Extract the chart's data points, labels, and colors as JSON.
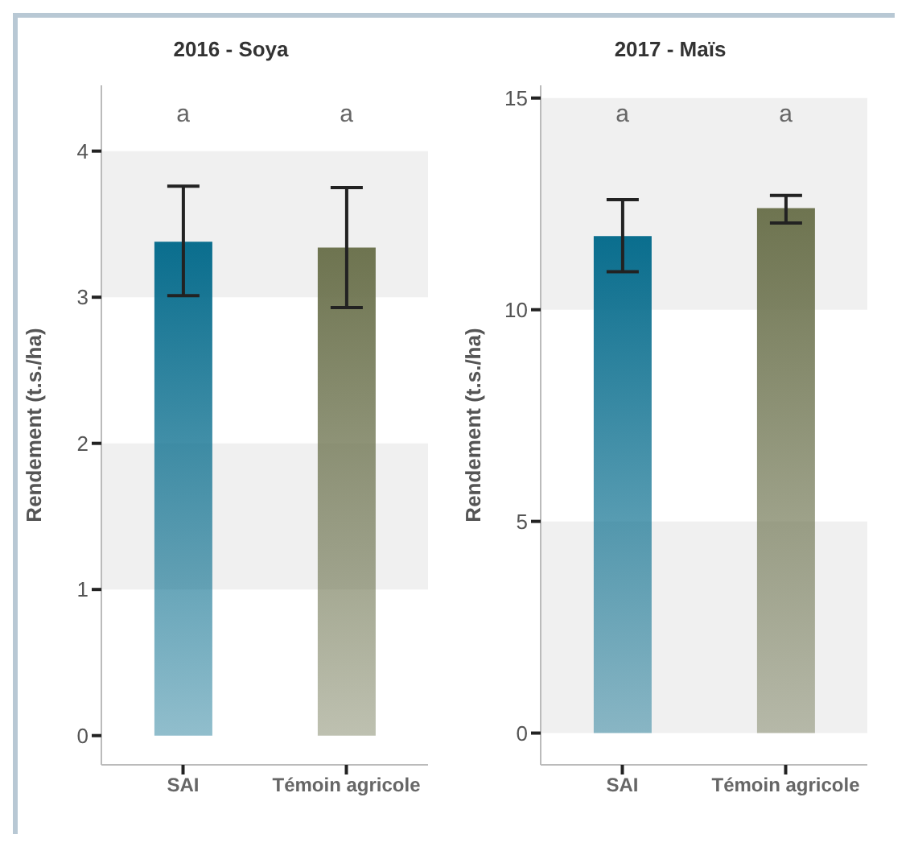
{
  "chart_data": [
    {
      "type": "bar",
      "title": "2016 - Soya",
      "ylabel": "Rendement (t.s./ha)",
      "categories": [
        "SAI",
        "Témoin agricole"
      ],
      "values": [
        3.38,
        3.34
      ],
      "colors": [
        "#0a6e8e",
        "#6e7450"
      ],
      "errors": [
        [
          3.01,
          3.76
        ],
        [
          2.93,
          3.75
        ]
      ],
      "ylim": [
        -0.2,
        4.45
      ],
      "yticks": [
        0,
        1,
        2,
        3,
        4
      ],
      "grid": false,
      "legend": false,
      "bands": [
        {
          "axis": "y",
          "from": 1,
          "to": 2,
          "color": "#f0f0f0"
        },
        {
          "axis": "y",
          "from": 3,
          "to": 4,
          "color": "#f0f0f0"
        }
      ],
      "annotations": [
        "a",
        "a"
      ]
    },
    {
      "type": "bar",
      "title": "2017 - Maïs",
      "ylabel": "Rendement (t.s./ha)",
      "categories": [
        "SAI",
        "Témoin agricole"
      ],
      "values": [
        11.74,
        12.4
      ],
      "colors": [
        "#0a6e8e",
        "#6e7450"
      ],
      "errors": [
        [
          10.9,
          12.6
        ],
        [
          12.05,
          12.7
        ]
      ],
      "ylim": [
        -0.75,
        15.3
      ],
      "yticks": [
        0,
        5,
        10,
        15
      ],
      "grid": false,
      "legend": false,
      "bands": [
        {
          "axis": "y",
          "from": 0,
          "to": 5,
          "color": "#f0f0f0"
        },
        {
          "axis": "y",
          "from": 10,
          "to": 15,
          "color": "#f0f0f0"
        }
      ],
      "annotations": [
        "a",
        "a"
      ]
    }
  ]
}
